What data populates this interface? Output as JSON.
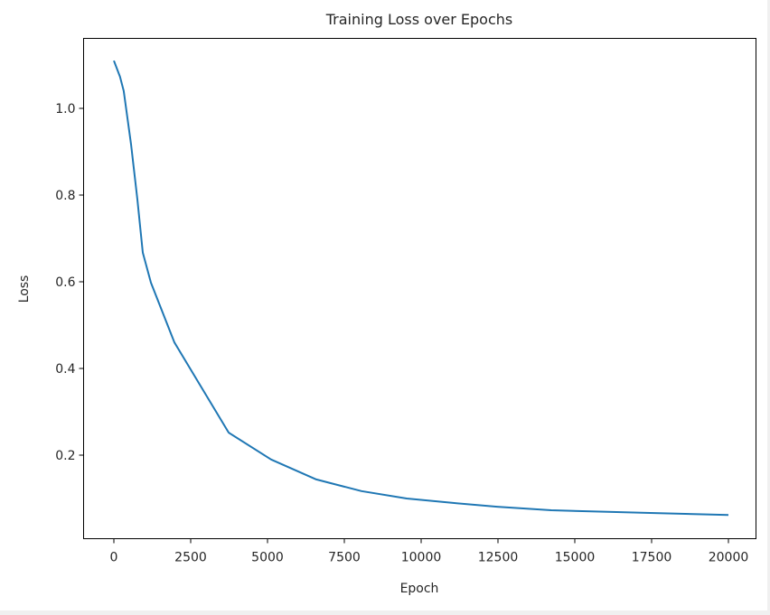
{
  "chart_data": {
    "type": "line",
    "title": "Training Loss over Epochs",
    "xlabel": "Epoch",
    "ylabel": "Loss",
    "xlim": [
      -1000,
      21000
    ],
    "ylim": [
      0.0,
      1.16
    ],
    "grid": false,
    "legend": null,
    "x_ticks": [
      0,
      2500,
      5000,
      7500,
      10000,
      12500,
      15000,
      17500,
      20000
    ],
    "x_tick_labels": [
      "0",
      "2500",
      "5000",
      "7500",
      "10000",
      "12500",
      "15000",
      "17500",
      "20000"
    ],
    "y_ticks": [
      0.2,
      0.4,
      0.6,
      0.8,
      1.0
    ],
    "y_tick_labels": [
      "0.2",
      "0.4",
      "0.6",
      "0.8",
      "1.0"
    ],
    "series": [
      {
        "name": "Loss",
        "color": "#1f77b4",
        "x": [
          0,
          200,
          320,
          560,
          765,
          940,
          1206,
          1970,
          2853,
          3735,
          5118,
          6588,
          8059,
          9529,
          11000,
          12470,
          14235,
          17176,
          20000
        ],
        "y": [
          1.11,
          1.073,
          1.04,
          0.917,
          0.79,
          0.667,
          0.598,
          0.46,
          0.356,
          0.252,
          0.19,
          0.144,
          0.117,
          0.1,
          0.09,
          0.081,
          0.073,
          0.067,
          0.062
        ]
      }
    ]
  },
  "colors": {
    "line": "#1f77b4",
    "axes": "#000000",
    "text": "#262626",
    "background": "#ffffff",
    "frame": "#f0f0f0"
  }
}
